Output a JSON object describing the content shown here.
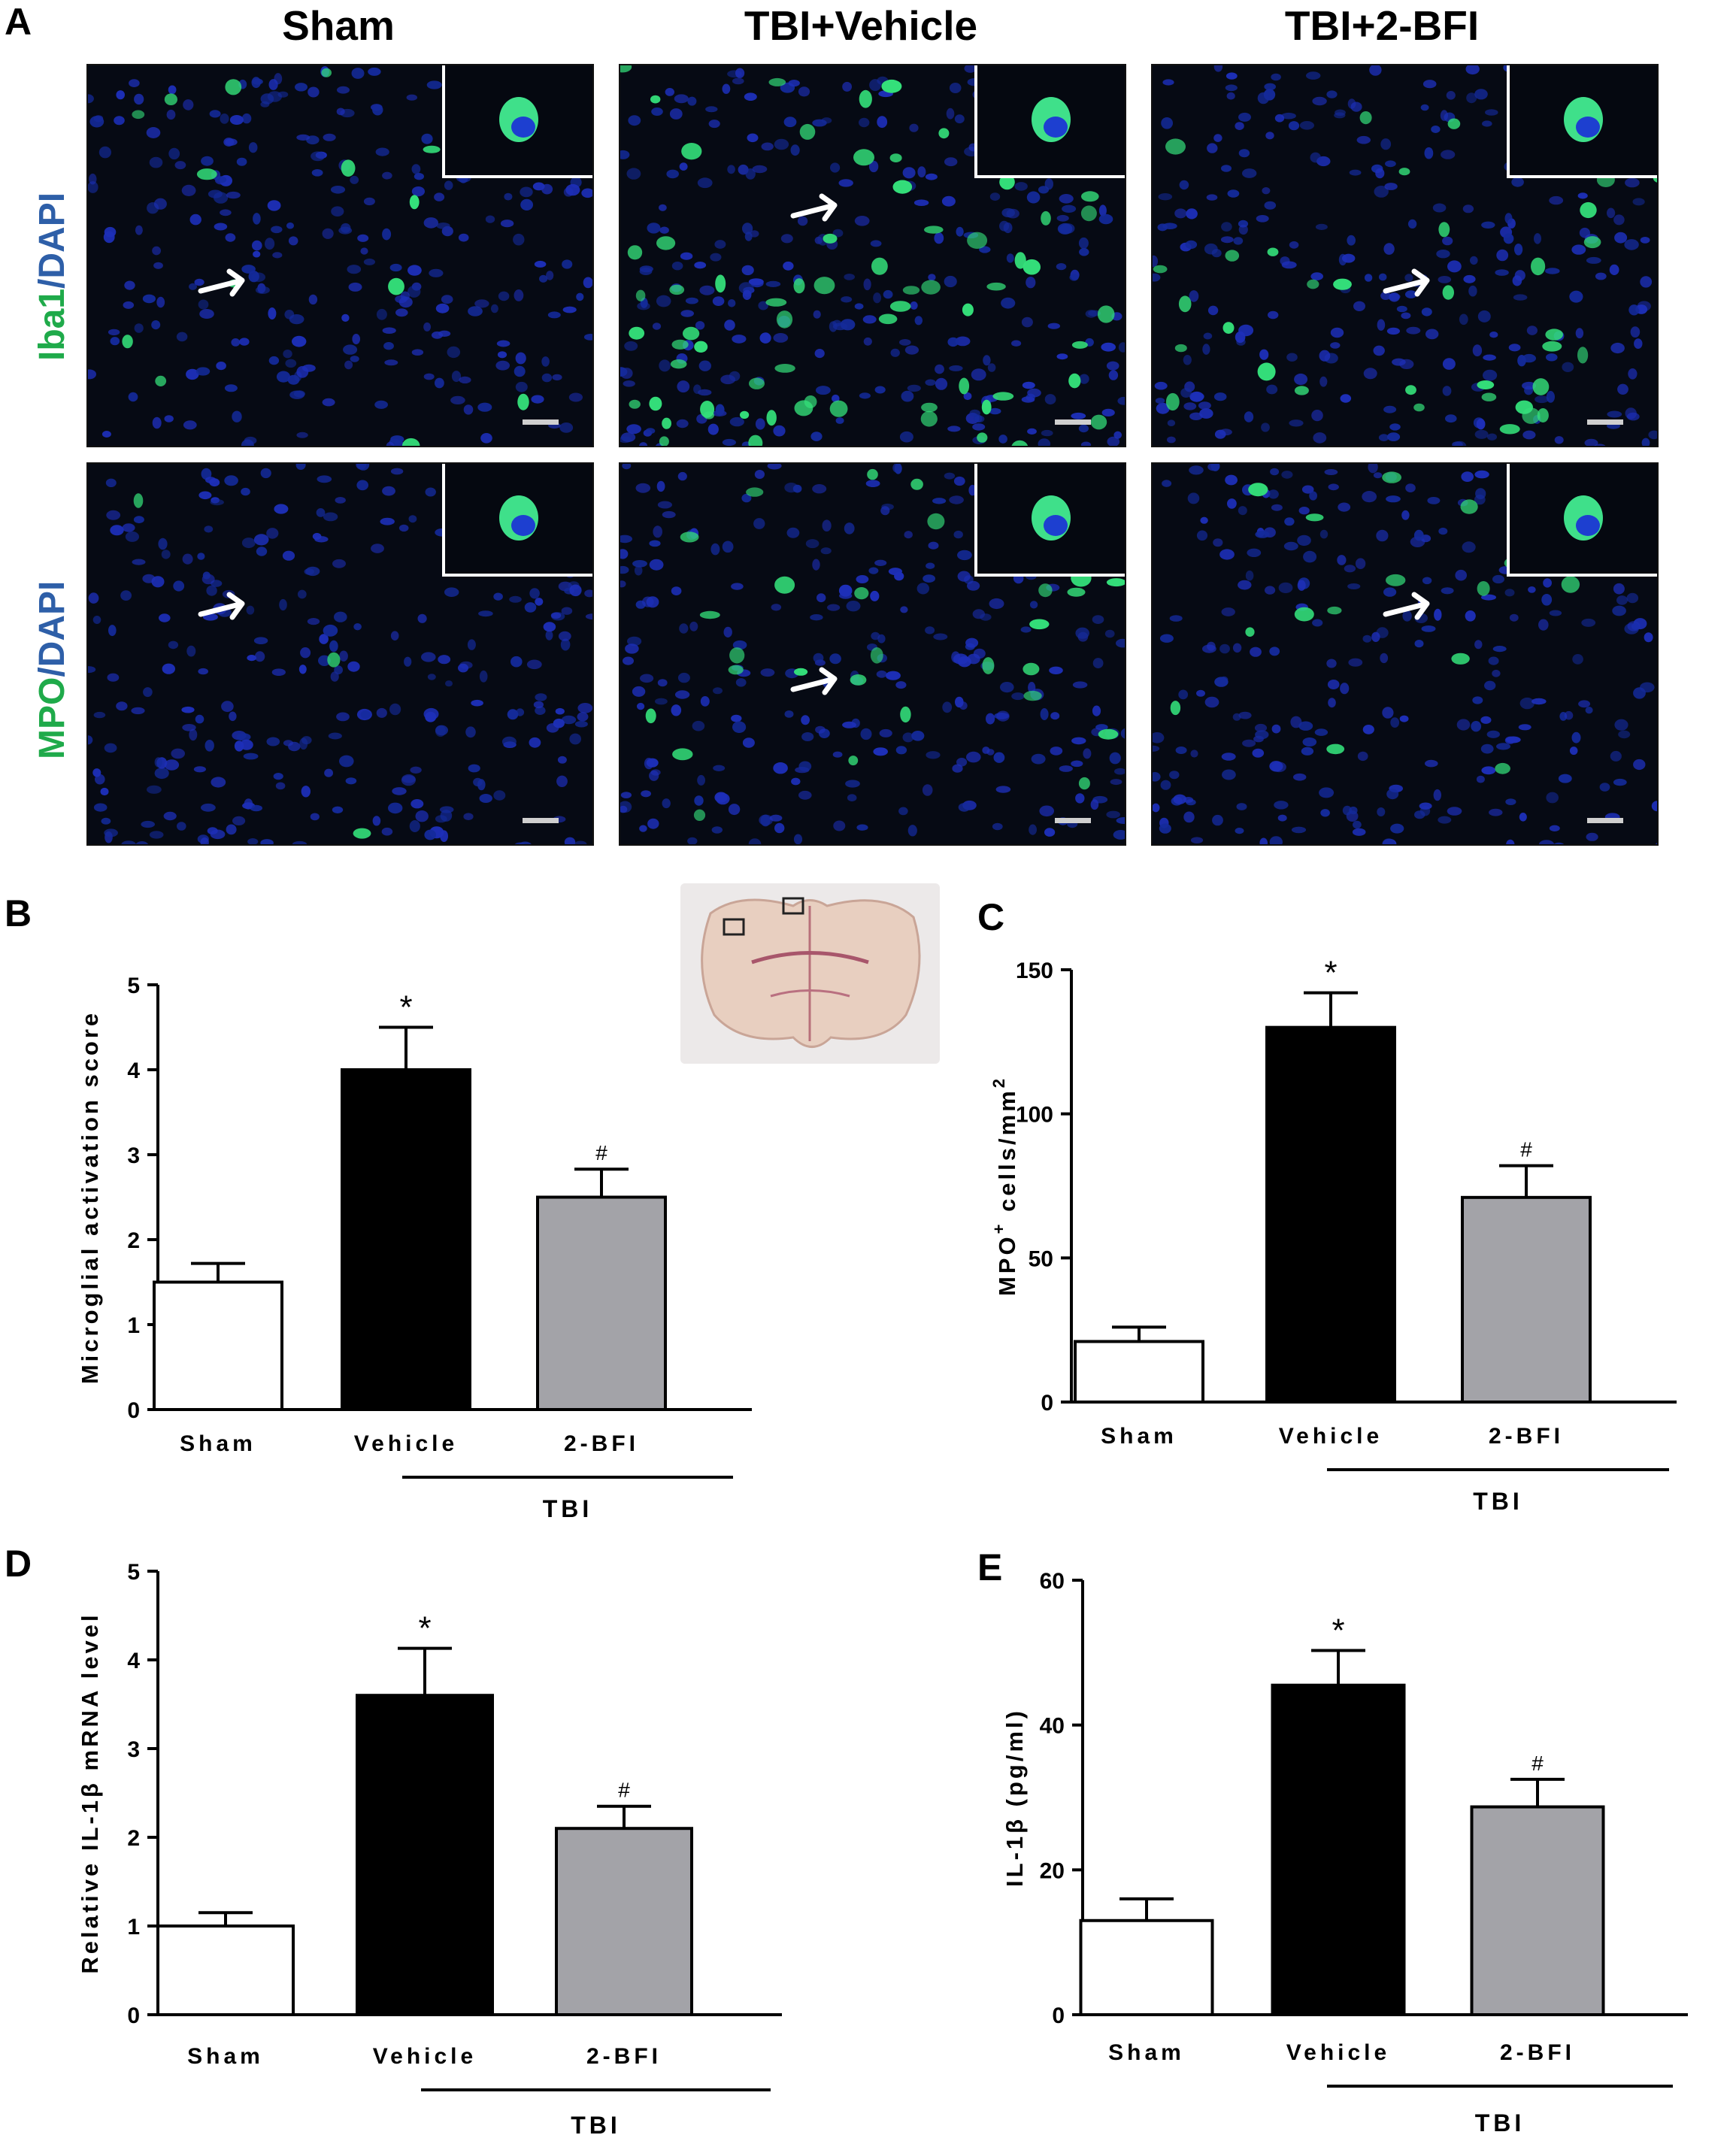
{
  "panel_a": {
    "letter": "A",
    "columns": [
      "Sham",
      "TBI+Vehicle",
      "TBI+2-BFI"
    ],
    "rows": [
      {
        "marker": "Iba1",
        "sep": "/",
        "counter": "DAPI"
      },
      {
        "marker": "MPO",
        "sep": "/",
        "counter": "DAPI"
      }
    ],
    "colors": {
      "marker": "#1faa4a",
      "counter": "#2e5fa8"
    }
  },
  "chart_data": [
    {
      "panel": "B",
      "type": "bar",
      "categories": [
        "Sham",
        "Vehicle",
        "2-BFI"
      ],
      "values": [
        1.5,
        4.0,
        2.5
      ],
      "errors": [
        0.22,
        0.5,
        0.33
      ],
      "annotations": [
        "",
        "*",
        "#"
      ],
      "ylabel": "Microglial activation score",
      "ylabel_sup": "",
      "ylim": [
        0,
        5
      ],
      "yticks": [
        0,
        1,
        2,
        3,
        4,
        5
      ],
      "group_label": "TBI",
      "colors": [
        "#ffffff",
        "#000000",
        "#a3a3a8"
      ]
    },
    {
      "panel": "C",
      "type": "bar",
      "categories": [
        "Sham",
        "Vehicle",
        "2-BFI"
      ],
      "values": [
        21,
        130,
        71
      ],
      "errors": [
        5,
        12,
        11
      ],
      "annotations": [
        "",
        "*",
        "#"
      ],
      "ylabel": "MPO cells/mm",
      "ylabel_sup": "+ 2",
      "ylim": [
        0,
        150
      ],
      "yticks": [
        0,
        50,
        100,
        150
      ],
      "group_label": "TBI",
      "colors": [
        "#ffffff",
        "#000000",
        "#a3a3a8"
      ]
    },
    {
      "panel": "D",
      "type": "bar",
      "categories": [
        "Sham",
        "Vehicle",
        "2-BFI"
      ],
      "values": [
        1.0,
        3.6,
        2.1
      ],
      "errors": [
        0.15,
        0.53,
        0.25
      ],
      "annotations": [
        "",
        "*",
        "#"
      ],
      "ylabel": "Relative IL-1β mRNA level",
      "ylabel_sup": "",
      "ylim": [
        0,
        5
      ],
      "yticks": [
        0,
        1,
        2,
        3,
        4,
        5
      ],
      "group_label": "TBI",
      "colors": [
        "#ffffff",
        "#000000",
        "#a3a3a8"
      ]
    },
    {
      "panel": "E",
      "type": "bar",
      "categories": [
        "Sham",
        "Vehicle",
        "2-BFI"
      ],
      "values": [
        13,
        45.5,
        28.7
      ],
      "errors": [
        3,
        4.8,
        3.8
      ],
      "annotations": [
        "",
        "*",
        "#"
      ],
      "ylabel": "IL-1β (pg/ml)",
      "ylabel_sup": "",
      "ylim": [
        0,
        60
      ],
      "yticks": [
        0,
        20,
        40,
        60
      ],
      "group_label": "TBI",
      "colors": [
        "#ffffff",
        "#000000",
        "#a3a3a8"
      ]
    }
  ]
}
